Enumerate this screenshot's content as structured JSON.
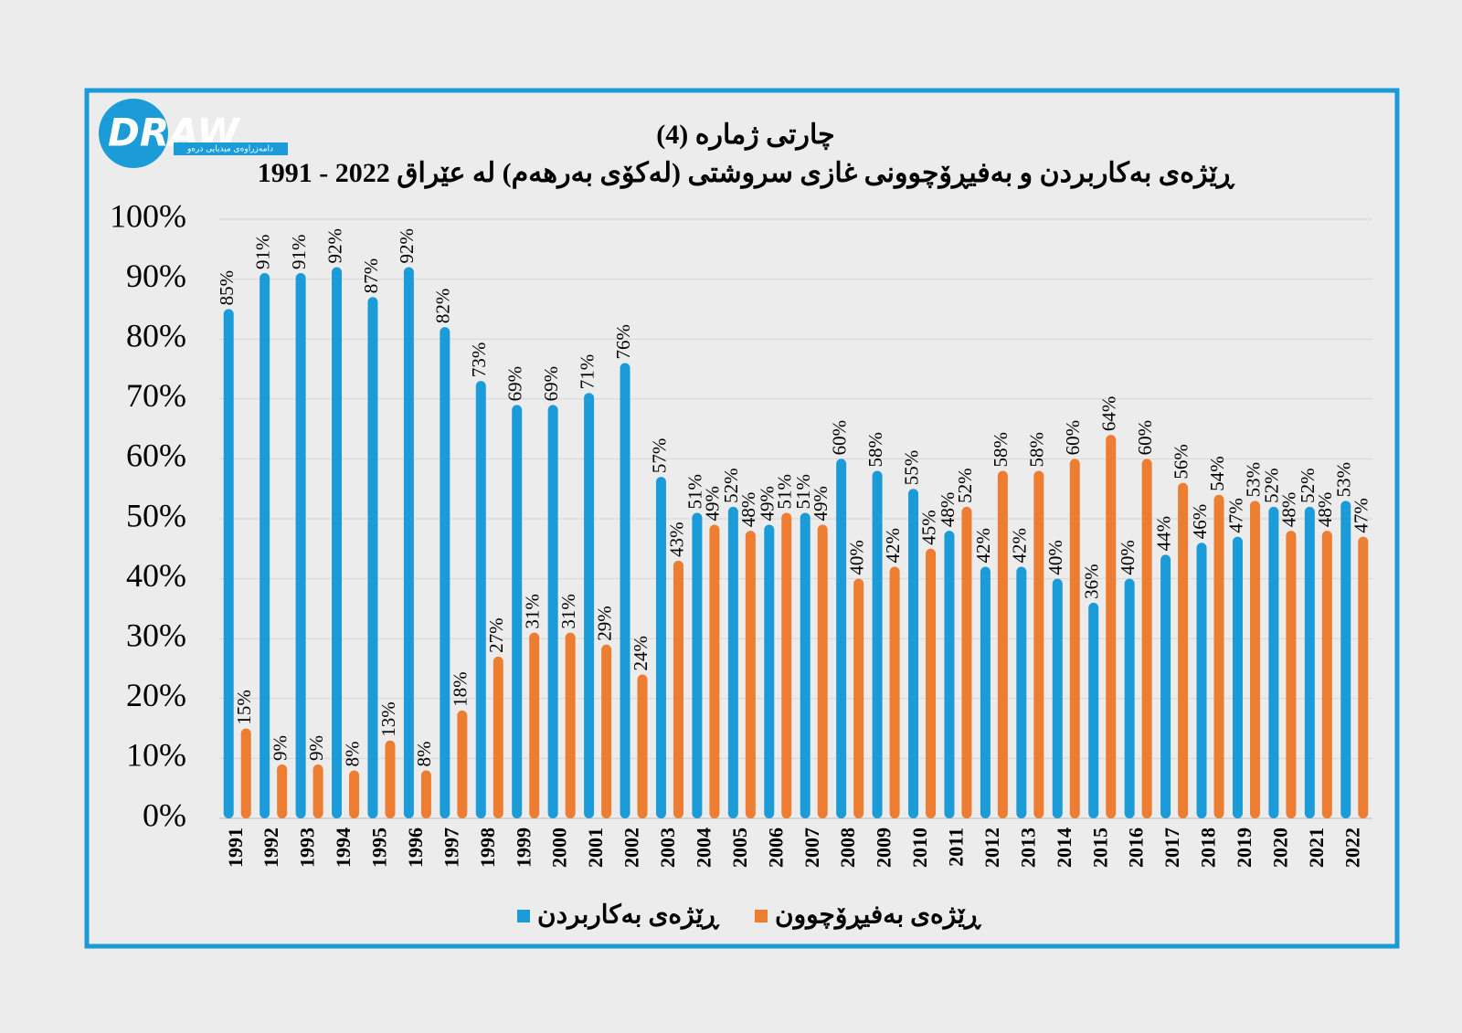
{
  "logo": {
    "text": "DRAW",
    "subtitle": "دامەزراوەی میدیایی درەو"
  },
  "chart_data": {
    "type": "bar",
    "title": "چارتی ژمارە (4)",
    "subtitle": "ڕێژەی بەکاربردن و بەفیڕۆچوونی غازی سروشتی (لەکۆی بەرهەم) لە عێراق 2022 - 1991",
    "categories": [
      "1991",
      "1992",
      "1993",
      "1994",
      "1995",
      "1996",
      "1997",
      "1998",
      "1999",
      "2000",
      "2001",
      "2002",
      "2003",
      "2004",
      "2005",
      "2006",
      "2007",
      "2008",
      "2009",
      "2010",
      "2011",
      "2012",
      "2013",
      "2014",
      "2015",
      "2016",
      "2017",
      "2018",
      "2019",
      "2020",
      "2021",
      "2022"
    ],
    "series": [
      {
        "name": "ڕێژەی بەکاربردن",
        "color": "#1b9bd7",
        "values": [
          85,
          91,
          91,
          92,
          87,
          92,
          82,
          73,
          69,
          69,
          71,
          76,
          57,
          51,
          52,
          49,
          51,
          60,
          58,
          55,
          48,
          42,
          42,
          40,
          36,
          40,
          44,
          46,
          47,
          52,
          52,
          53
        ],
        "value_labels": [
          "85%",
          "91%",
          "91%",
          "92%",
          "87%",
          "92%",
          "82%",
          "73%",
          "69%",
          "69%",
          "71%",
          "76%",
          "57%",
          "51%",
          "52%",
          "49%",
          "51%",
          "60%",
          "58%",
          "55%",
          "48%",
          "42%",
          "42%",
          "40%",
          "36%",
          "40%",
          "44%",
          "46%",
          "47%",
          "52%",
          "52%",
          "53%"
        ]
      },
      {
        "name": "ڕێژەی بەفیڕۆچوون",
        "color": "#ed7d31",
        "values": [
          15,
          9,
          9,
          8,
          13,
          8,
          18,
          27,
          31,
          31,
          29,
          24,
          43,
          49,
          48,
          51,
          49,
          40,
          42,
          45,
          52,
          58,
          58,
          60,
          64,
          60,
          56,
          54,
          53,
          48,
          48,
          47
        ],
        "value_labels": [
          "15%",
          "9%",
          "9%",
          "8%",
          "13%",
          "8%",
          "18%",
          "27%",
          "31%",
          "31%",
          "29%",
          "24%",
          "43%",
          "49%",
          "48%",
          "51%",
          "49%",
          "40%",
          "42%",
          "45%",
          "52%",
          "58%",
          "58%",
          "60%",
          "64%",
          "60%",
          "56%",
          "54%",
          "53%",
          "48%",
          "48%",
          "47%"
        ]
      }
    ],
    "ylim": [
      0,
      100
    ],
    "yticks": [
      {
        "value": 0,
        "label": "0%"
      },
      {
        "value": 10,
        "label": "10%"
      },
      {
        "value": 20,
        "label": "20%"
      },
      {
        "value": 30,
        "label": "30%"
      },
      {
        "value": 40,
        "label": "40%"
      },
      {
        "value": 50,
        "label": "50%"
      },
      {
        "value": 60,
        "label": "60%"
      },
      {
        "value": 70,
        "label": "70%"
      },
      {
        "value": 80,
        "label": "80%"
      },
      {
        "value": 90,
        "label": "90%"
      },
      {
        "value": 100,
        "label": "100%"
      }
    ],
    "grid": true,
    "legend": "bottom"
  }
}
